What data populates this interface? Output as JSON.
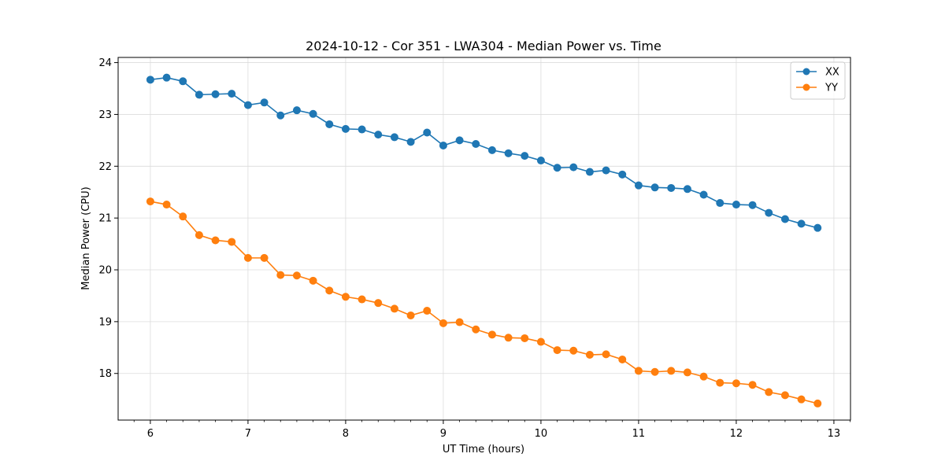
{
  "chart_data": {
    "type": "line",
    "title": "2024-10-12 - Cor 351 - LWA304 - Median Power vs. Time",
    "xlabel": "UT Time (hours)",
    "ylabel": "Median Power (CPU)",
    "xlim": [
      5.67,
      13.17
    ],
    "ylim": [
      17.1,
      24.1
    ],
    "xticks": [
      6,
      7,
      8,
      9,
      10,
      11,
      12,
      13
    ],
    "yticks": [
      18,
      19,
      20,
      21,
      22,
      23,
      24
    ],
    "grid": true,
    "legend_position": "top-right",
    "x": [
      6.0,
      6.1667,
      6.3333,
      6.5,
      6.6667,
      6.8333,
      7.0,
      7.1667,
      7.3333,
      7.5,
      7.6667,
      7.8333,
      8.0,
      8.1667,
      8.3333,
      8.5,
      8.6667,
      8.8333,
      9.0,
      9.1667,
      9.3333,
      9.5,
      9.6667,
      9.8333,
      10.0,
      10.1667,
      10.3333,
      10.5,
      10.6667,
      10.8333,
      11.0,
      11.1667,
      11.3333,
      11.5,
      11.6667,
      11.8333,
      12.0,
      12.1667,
      12.3333,
      12.5,
      12.6667,
      12.8333
    ],
    "series": [
      {
        "name": "XX",
        "color": "#1f77b4",
        "values": [
          23.67,
          23.71,
          23.64,
          23.38,
          23.39,
          23.4,
          23.18,
          23.23,
          22.98,
          23.08,
          23.01,
          22.81,
          22.72,
          22.71,
          22.61,
          22.56,
          22.47,
          22.65,
          22.4,
          22.5,
          22.43,
          22.31,
          22.25,
          22.2,
          22.11,
          21.97,
          21.98,
          21.89,
          21.92,
          21.84,
          21.63,
          21.59,
          21.58,
          21.56,
          21.45,
          21.29,
          21.26,
          21.25,
          21.1,
          20.98,
          20.89,
          20.81
        ]
      },
      {
        "name": "YY",
        "color": "#ff7f0e",
        "values": [
          21.32,
          21.26,
          21.03,
          20.67,
          20.57,
          20.54,
          20.23,
          20.23,
          19.9,
          19.89,
          19.79,
          19.6,
          19.48,
          19.43,
          19.36,
          19.25,
          19.12,
          19.21,
          18.97,
          18.99,
          18.85,
          18.75,
          18.69,
          18.68,
          18.61,
          18.45,
          18.44,
          18.36,
          18.37,
          18.27,
          18.05,
          18.03,
          18.05,
          18.02,
          17.94,
          17.82,
          17.81,
          17.78,
          17.64,
          17.58,
          17.5,
          17.42
        ]
      }
    ]
  }
}
